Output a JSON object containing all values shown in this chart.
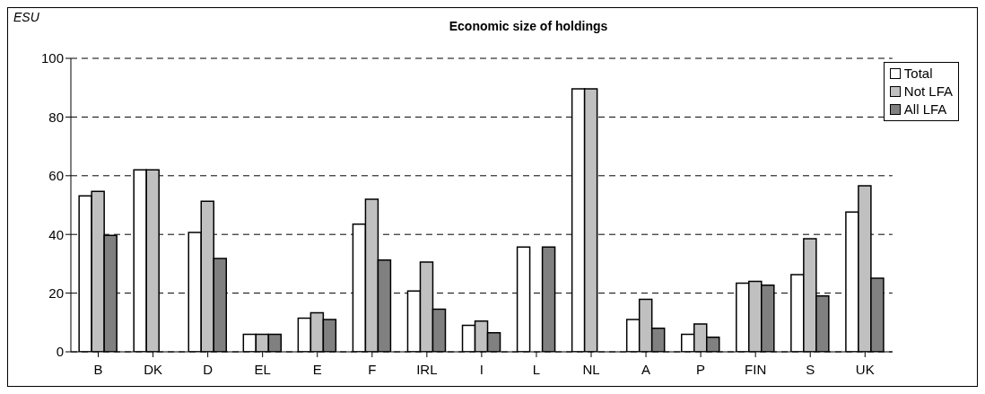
{
  "chart_data": {
    "type": "bar",
    "title": "Economic size of holdings",
    "ylabel": "ESU",
    "categories": [
      "B",
      "DK",
      "D",
      "EL",
      "E",
      "F",
      "IRL",
      "I",
      "L",
      "NL",
      "A",
      "P",
      "FIN",
      "S",
      "UK"
    ],
    "series": [
      {
        "name": "Total",
        "color": "#ffffff",
        "values": [
          53.1,
          62,
          40.7,
          6,
          11.5,
          43.5,
          20.7,
          9,
          35.7,
          89.6,
          11,
          6,
          23.4,
          26.3,
          47.6
        ]
      },
      {
        "name": "Not LFA",
        "color": "#c0c0c0",
        "values": [
          54.7,
          62,
          51.3,
          6,
          13.3,
          52,
          30.6,
          10.5,
          null,
          89.6,
          17.9,
          9.5,
          24,
          38.5,
          56.6
        ]
      },
      {
        "name": "All LFA",
        "color": "#808080",
        "values": [
          39.7,
          null,
          31.8,
          6,
          11,
          31.3,
          14.5,
          6.5,
          35.7,
          null,
          8,
          5,
          22.7,
          19,
          25.1
        ]
      }
    ],
    "ylim": [
      0,
      100
    ],
    "yticks": [
      0,
      20,
      40,
      60,
      80,
      100
    ],
    "grid": "y",
    "legend": "top right"
  }
}
